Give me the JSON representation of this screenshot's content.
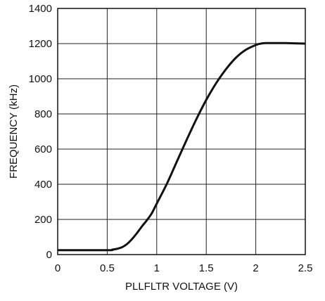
{
  "chart_data": {
    "type": "line",
    "title": "",
    "xlabel": "PLLFLTR VOLTAGE (V)",
    "ylabel": "FREQUENCY (kHz)",
    "xlim": [
      0,
      2.5
    ],
    "ylim": [
      0,
      1400
    ],
    "xticks": [
      0,
      0.5,
      1,
      1.5,
      2,
      2.5
    ],
    "xtick_labels": [
      "0",
      "0.5",
      "1",
      "1.5",
      "2",
      "2.5"
    ],
    "yticks": [
      0,
      200,
      400,
      600,
      800,
      1000,
      1200,
      1400
    ],
    "ytick_labels": [
      "0",
      "200",
      "400",
      "600",
      "800",
      "1000",
      "1200",
      "1400"
    ],
    "grid": true,
    "colors": {
      "line": "#111111",
      "grid": "#222222",
      "frame": "#111111"
    },
    "series": [
      {
        "x": [
          0,
          0.5,
          0.55,
          0.6,
          0.65,
          0.7,
          0.75,
          0.8,
          0.85,
          0.9,
          0.95,
          1.0,
          1.1,
          1.2,
          1.3,
          1.4,
          1.5,
          1.6,
          1.7,
          1.8,
          1.9,
          2.0,
          2.05,
          2.1,
          2.2,
          2.3,
          2.5
        ],
        "y": [
          25,
          25,
          28,
          33,
          42,
          60,
          88,
          122,
          160,
          195,
          235,
          290,
          400,
          525,
          650,
          770,
          880,
          975,
          1055,
          1120,
          1165,
          1192,
          1200,
          1203,
          1203,
          1203,
          1200
        ]
      }
    ]
  }
}
